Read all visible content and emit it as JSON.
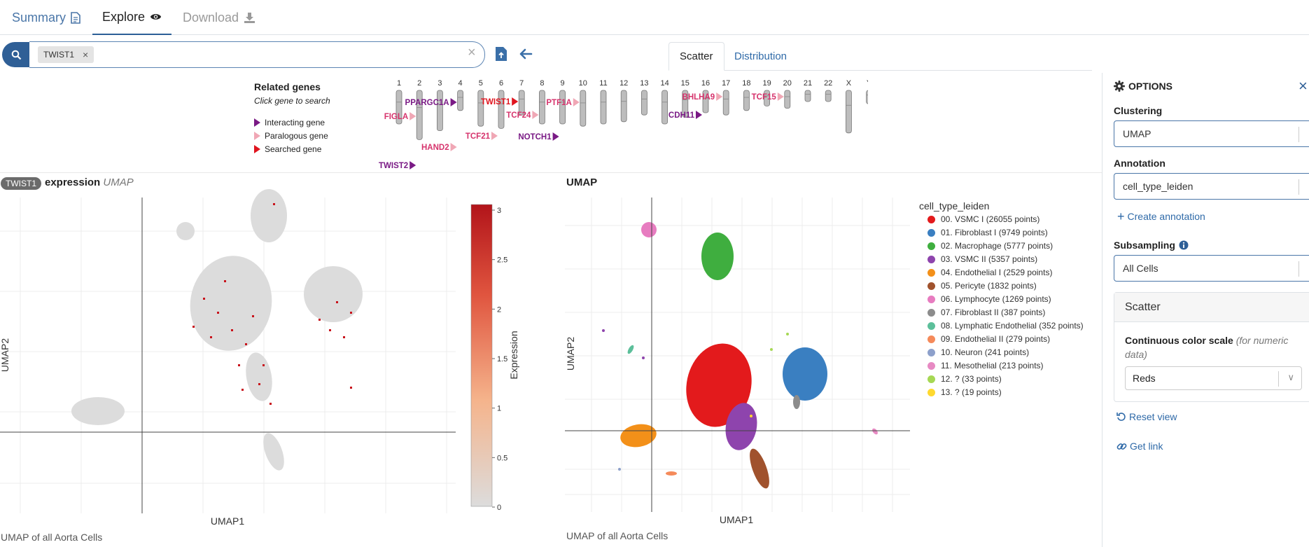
{
  "tabs": {
    "summary": "Summary",
    "explore": "Explore",
    "download": "Download"
  },
  "search": {
    "chip": "TWIST1",
    "chip_remove": "×",
    "clear": "×"
  },
  "plot_tabs": {
    "scatter": "Scatter",
    "distribution": "Distribution"
  },
  "related_genes": {
    "title": "Related genes",
    "subtitle": "Click gene to search",
    "legend": [
      {
        "label": "Interacting gene",
        "color": "#7a1a85"
      },
      {
        "label": "Paralogous gene",
        "color": "#f0a7b5"
      },
      {
        "label": "Searched gene",
        "color": "#e0141e"
      }
    ],
    "chromosomes": [
      "1",
      "2",
      "3",
      "4",
      "5",
      "6",
      "7",
      "8",
      "9",
      "10",
      "11",
      "12",
      "13",
      "14",
      "15",
      "16",
      "17",
      "18",
      "19",
      "20",
      "21",
      "22",
      "X",
      "Y"
    ],
    "genes": [
      {
        "label": "PPARGC1A",
        "type": "interacting",
        "chrom": "4"
      },
      {
        "label": "FIGLA",
        "type": "paralogous",
        "chrom": "2"
      },
      {
        "label": "TWIST1",
        "type": "searched",
        "chrom": "7"
      },
      {
        "label": "TCF24",
        "type": "paralogous",
        "chrom": "8"
      },
      {
        "label": "PTF1A",
        "type": "paralogous",
        "chrom": "10"
      },
      {
        "label": "BHLHA9",
        "type": "paralogous",
        "chrom": "17"
      },
      {
        "label": "TCF15",
        "type": "paralogous",
        "chrom": "20"
      },
      {
        "label": "CDH11",
        "type": "interacting",
        "chrom": "16"
      },
      {
        "label": "TCF21",
        "type": "paralogous",
        "chrom": "6"
      },
      {
        "label": "NOTCH1",
        "type": "interacting",
        "chrom": "9"
      },
      {
        "label": "HAND2",
        "type": "paralogous",
        "chrom": "4"
      },
      {
        "label": "TWIST2",
        "type": "interacting",
        "chrom": "2"
      }
    ]
  },
  "expression_plot": {
    "badge": "TWIST1",
    "title": "expression",
    "subtitle": "UMAP",
    "xlabel": "UMAP1",
    "ylabel": "UMAP2",
    "caption": "UMAP of all Aorta Cells",
    "colorbar_label": "Expression",
    "colorbar_ticks": [
      "3",
      "2.5",
      "2",
      "1.5",
      "1",
      "0.5",
      "0"
    ]
  },
  "umap_plot": {
    "title": "UMAP",
    "xlabel": "UMAP1",
    "ylabel": "UMAP2",
    "caption": "UMAP of all Aorta Cells",
    "legend_title": "cell_type_leiden",
    "legend": [
      {
        "label": "00. VSMC I (26055 points)",
        "color": "#e31a1c"
      },
      {
        "label": "01. Fibroblast I (9749 points)",
        "color": "#3a7fc1"
      },
      {
        "label": "02. Macrophage (5777 points)",
        "color": "#3fae3f"
      },
      {
        "label": "03. VSMC II (5357 points)",
        "color": "#8e44ad"
      },
      {
        "label": "04. Endothelial I (2529 points)",
        "color": "#f39019"
      },
      {
        "label": "05. Pericyte (1832 points)",
        "color": "#a0522d"
      },
      {
        "label": "06. Lymphocyte (1269 points)",
        "color": "#e77cc0"
      },
      {
        "label": "07. Fibroblast II (387 points)",
        "color": "#8c8c8c"
      },
      {
        "label": "08. Lymphatic Endothelial (352 points)",
        "color": "#5cbf9a"
      },
      {
        "label": "09. Endothelial II (279 points)",
        "color": "#f58a5a"
      },
      {
        "label": "10. Neuron (241 points)",
        "color": "#8da0cb"
      },
      {
        "label": "11. Mesothelial (213 points)",
        "color": "#e78ac3"
      },
      {
        "label": "12. ? (33 points)",
        "color": "#a6d854"
      },
      {
        "label": "13. ? (19 points)",
        "color": "#ffd92f"
      }
    ]
  },
  "options": {
    "title": "OPTIONS",
    "close": "×",
    "clustering_label": "Clustering",
    "clustering_value": "UMAP",
    "annotation_label": "Annotation",
    "annotation_value": "cell_type_leiden",
    "create_annotation": "Create annotation",
    "subsampling_label": "Subsampling",
    "subsampling_value": "All Cells",
    "scatter_card_title": "Scatter",
    "color_scale_label": "Continuous color scale",
    "color_scale_hint": "(for numeric data)",
    "color_scale_value": "Reds",
    "reset_view": "Reset view",
    "get_link": "Get link"
  }
}
